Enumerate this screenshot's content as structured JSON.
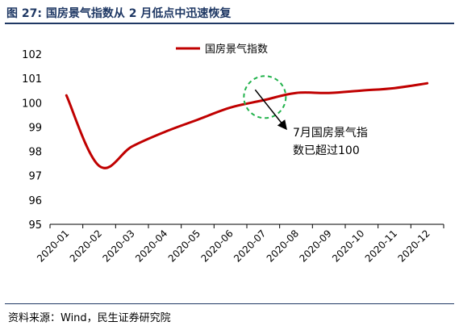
{
  "figure": {
    "title": "图 27: 国房景气指数从 2 月低点中迅速恢复",
    "source": "资料来源：Wind，民生证券研究院"
  },
  "colors": {
    "title": "#1f3864",
    "line": "#c00000",
    "annotation_circle": "#21b24b",
    "axis": "#000000"
  },
  "chart_data": {
    "type": "line",
    "categories": [
      "2020-01",
      "2020-02",
      "2020-03",
      "2020-04",
      "2020-05",
      "2020-06",
      "2020-07",
      "2020-08",
      "2020-09",
      "2020-10",
      "2020-11",
      "2020-12"
    ],
    "yticks": [
      "95",
      "96",
      "97",
      "98",
      "99",
      "100",
      "101",
      "102"
    ],
    "ylim": [
      95,
      102
    ],
    "series": [
      {
        "name": "国房景气指数",
        "values": [
          100.3,
          97.4,
          98.2,
          98.8,
          99.3,
          99.8,
          100.1,
          100.4,
          100.4,
          100.5,
          100.6,
          100.8
        ]
      }
    ],
    "legend_position": "top-center",
    "annotation": {
      "text_line1": "7月国房景气指",
      "text_line2": "数已超过100",
      "x": "2020-07",
      "y": 100.1
    },
    "grid": false
  }
}
